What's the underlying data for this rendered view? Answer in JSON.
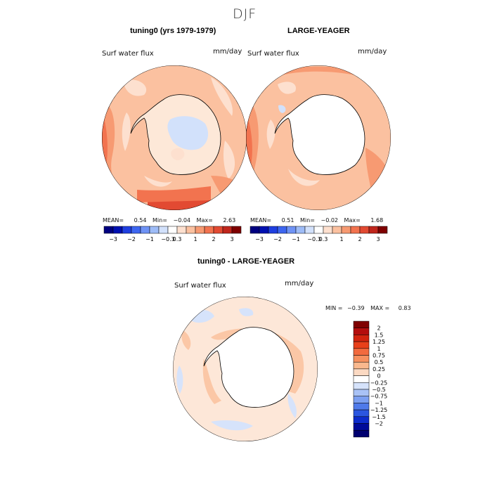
{
  "figure": {
    "season_title": "DJF",
    "panels": [
      {
        "title": "tuning0 (yrs 1979-1979)",
        "variable": "Surf water flux",
        "units": "mm/day",
        "stats": {
          "mean_label": "MEAN=",
          "mean": "0.54",
          "min_label": "Min=",
          "min": "−0.04",
          "max_label": "Max=",
          "max": "2.63"
        }
      },
      {
        "title": "LARGE-YEAGER",
        "variable": "Surf water flux",
        "units": "mm/day",
        "stats": {
          "mean_label": "MEAN=",
          "mean": "0.51",
          "min_label": "Min=",
          "min": "−0.02",
          "max_label": "Max=",
          "max": "1.68"
        }
      },
      {
        "title": "tuning0 - LARGE-YEAGER",
        "variable": "Surf water flux",
        "units": "mm/day",
        "stats": {
          "min_label": "MIN =",
          "min": "−0.39",
          "max_label": "MAX =",
          "max": "0.83"
        }
      }
    ]
  },
  "colorbar_main": {
    "colors": [
      "#000080",
      "#0010b0",
      "#1f3fe0",
      "#3d66f0",
      "#6f93f5",
      "#9ebcf7",
      "#d2e1fb",
      "#ffffff",
      "#fde0cf",
      "#fbc1a0",
      "#f79a72",
      "#f2734f",
      "#e24a32",
      "#c0261c",
      "#7f0000"
    ],
    "tick_labels": [
      "−3",
      "−2",
      "−1",
      "−0.3",
      "0.3",
      "1",
      "2",
      "3"
    ]
  },
  "colorbar_diff": {
    "colors": [
      "#7f0000",
      "#b40e0e",
      "#d2240f",
      "#e8401a",
      "#f26a3e",
      "#f6905f",
      "#f9b88e",
      "#fbd9c2",
      "#ffffff",
      "#d6e3fb",
      "#a9c2f6",
      "#7c9ff1",
      "#4f7aea",
      "#2b56e0",
      "#0d2ccc",
      "#000a99",
      "#000070"
    ],
    "tick_labels": [
      "2",
      "1.5",
      "1.25",
      "1",
      "0.75",
      "0.5",
      "0.25",
      "0",
      "−0.25",
      "−0.5",
      "−0.75",
      "−1",
      "−1.25",
      "−1.5",
      "−2"
    ]
  },
  "map_colors": {
    "ocean_light": "#fde0cf",
    "ocean_mid": "#fbc1a0",
    "ocean_strong": "#f79a72",
    "ocean_high": "#f2734f",
    "ocean_peak": "#e24a32",
    "antarctica_model": "#fde8d8",
    "antarctica_obs": "#ffffff",
    "blue_patch": "#d2e1fb",
    "diff_base": "#fde7d8",
    "diff_pos": "#fbc7a6",
    "diff_neg": "#d6e3fb"
  }
}
